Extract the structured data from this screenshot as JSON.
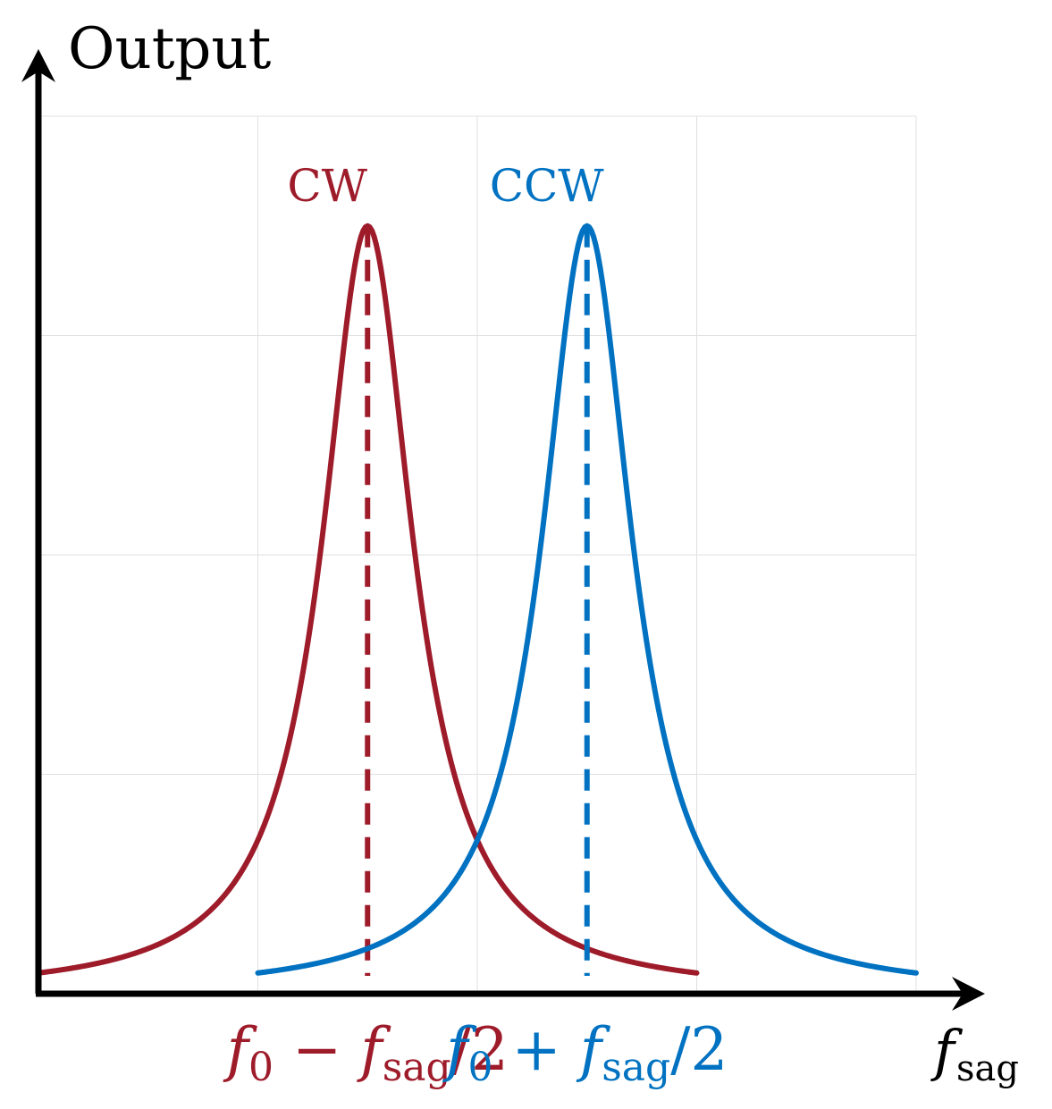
{
  "chart_data": {
    "type": "line",
    "title": "",
    "xlabel": "f",
    "xlabel_sub": "sag",
    "ylabel": "Output",
    "xlim": [
      0,
      4
    ],
    "ylim": [
      0,
      4
    ],
    "grid": true,
    "series": [
      {
        "name": "CW",
        "color": "#9e1b2a",
        "peak_x": 1.5,
        "peak_y": 3.5,
        "half_width": 0.25,
        "x_range": [
          0,
          3
        ],
        "marker_label": {
          "main": "f",
          "sub0": "0",
          "op": " − ",
          "f2": "f",
          "sub2": "sag",
          "tail": "/2"
        }
      },
      {
        "name": "CCW",
        "color": "#0072c1",
        "peak_x": 2.5,
        "peak_y": 3.5,
        "half_width": 0.25,
        "x_range": [
          1,
          4
        ],
        "marker_label": {
          "main": "f",
          "sub0": "0",
          "op": " + ",
          "f2": "f",
          "sub2": "sag",
          "tail": "/2"
        }
      }
    ]
  }
}
